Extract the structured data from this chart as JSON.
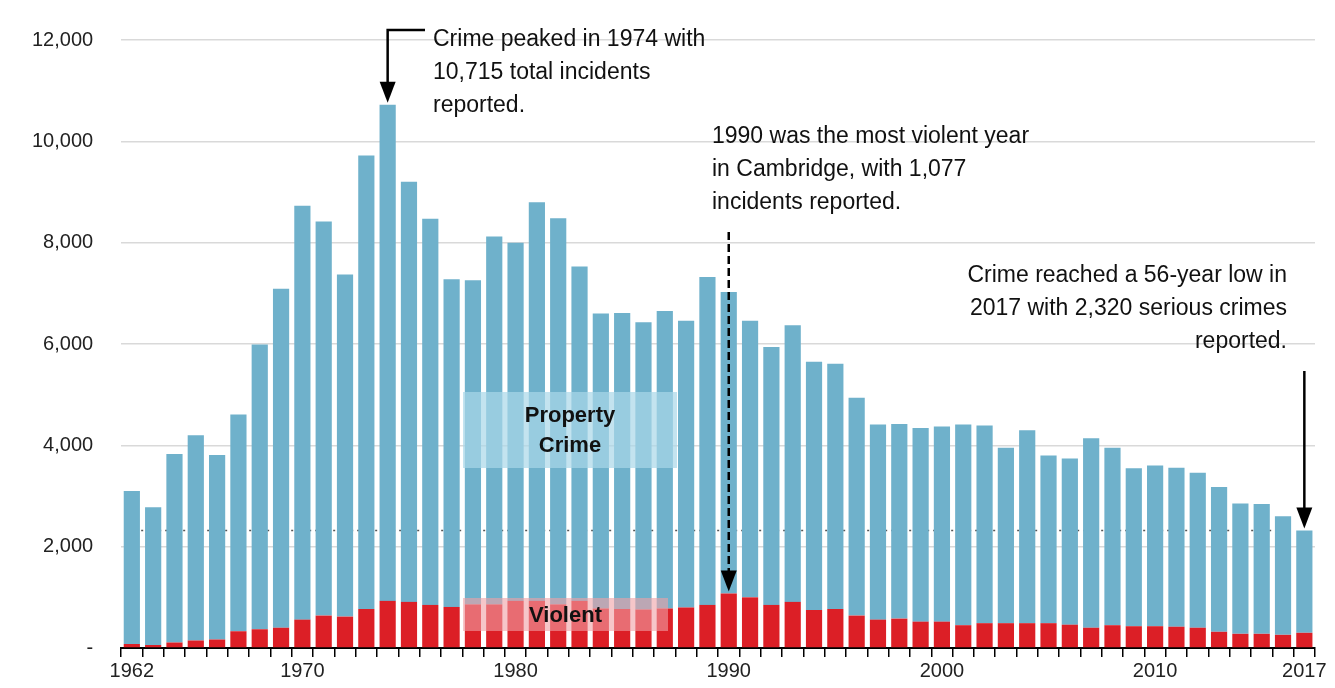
{
  "chart_data": {
    "type": "bar",
    "stacked": true,
    "categories": [
      "1962",
      null,
      null,
      null,
      null,
      null,
      null,
      null,
      "1970",
      null,
      null,
      null,
      null,
      null,
      null,
      null,
      null,
      null,
      "1980",
      null,
      null,
      null,
      null,
      null,
      null,
      null,
      null,
      null,
      "1990",
      null,
      null,
      null,
      null,
      null,
      null,
      null,
      null,
      null,
      "2000",
      null,
      null,
      null,
      null,
      null,
      null,
      null,
      null,
      null,
      "2010",
      null,
      null,
      null,
      null,
      null,
      null,
      "2017"
    ],
    "series": [
      {
        "name": "Violent",
        "color": "#dc1f26",
        "values": [
          80,
          60,
          110,
          150,
          170,
          330,
          370,
          400,
          560,
          640,
          620,
          770,
          930,
          910,
          850,
          810,
          860,
          860,
          930,
          930,
          860,
          930,
          780,
          770,
          760,
          780,
          800,
          850,
          1077,
          1000,
          850,
          910,
          750,
          770,
          640,
          560,
          580,
          520,
          520,
          450,
          490,
          490,
          490,
          490,
          460,
          400,
          450,
          430,
          430,
          420,
          400,
          320,
          280,
          280,
          260,
          300
        ]
      },
      {
        "name": "Property Crime",
        "color": "#6fb1cb",
        "values": [
          3020,
          2720,
          3720,
          4050,
          3640,
          4280,
          5620,
          6690,
          8170,
          7780,
          6750,
          8950,
          9790,
          8290,
          7620,
          6470,
          6400,
          7260,
          7070,
          7870,
          7620,
          6600,
          5820,
          5840,
          5670,
          5870,
          5660,
          6470,
          5950,
          5460,
          5090,
          5460,
          4900,
          4840,
          4300,
          3850,
          3840,
          3820,
          3850,
          3960,
          3900,
          3460,
          3810,
          3310,
          3280,
          3740,
          3500,
          3120,
          3170,
          3140,
          3060,
          2860,
          2570,
          2560,
          2340,
          2020
        ]
      }
    ],
    "ylim": [
      0,
      12000
    ],
    "yticks": [
      {
        "value": 0,
        "label": "-"
      },
      {
        "value": 2000,
        "label": "2,000"
      },
      {
        "value": 4000,
        "label": "4,000"
      },
      {
        "value": 6000,
        "label": "6,000"
      },
      {
        "value": 8000,
        "label": "8,000"
      },
      {
        "value": 10000,
        "label": "10,000"
      },
      {
        "value": 12000,
        "label": "12,000"
      }
    ],
    "grid": "y",
    "ref_lines": [
      {
        "axis": "y",
        "value": 2320,
        "color": "#555555",
        "line_style": "dotted"
      }
    ],
    "annotations": [
      "Crime peaked in 1974 with 10,715 total incidents reported.",
      "1990 was the most violent year in Cambridge, with 1,077 incidents reported.",
      "Crime reached a 56-year low in 2017 with 2,320 serious crimes reported."
    ]
  }
}
